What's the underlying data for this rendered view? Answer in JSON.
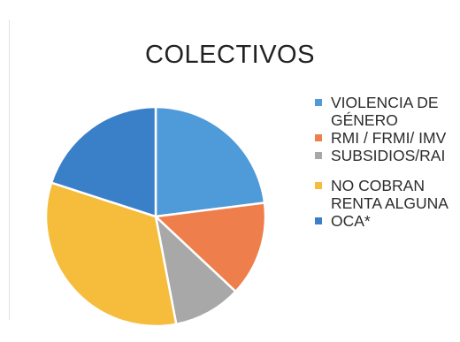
{
  "chart_data": {
    "type": "pie",
    "title": "COLECTIVOS",
    "categories": [
      "VIOLENCIA DE GÉNERO",
      "RMI / FRMI/ IMV",
      "SUBSIDIOS/RAI",
      "NO COBRAN RENTA ALGUNA",
      "OCA*"
    ],
    "values": [
      23,
      14,
      10,
      33,
      20
    ],
    "colors": [
      "#4f9ad8",
      "#ee7e4c",
      "#a8a8a8",
      "#f5bd3b",
      "#3a80c8"
    ],
    "legend_position": "right"
  }
}
